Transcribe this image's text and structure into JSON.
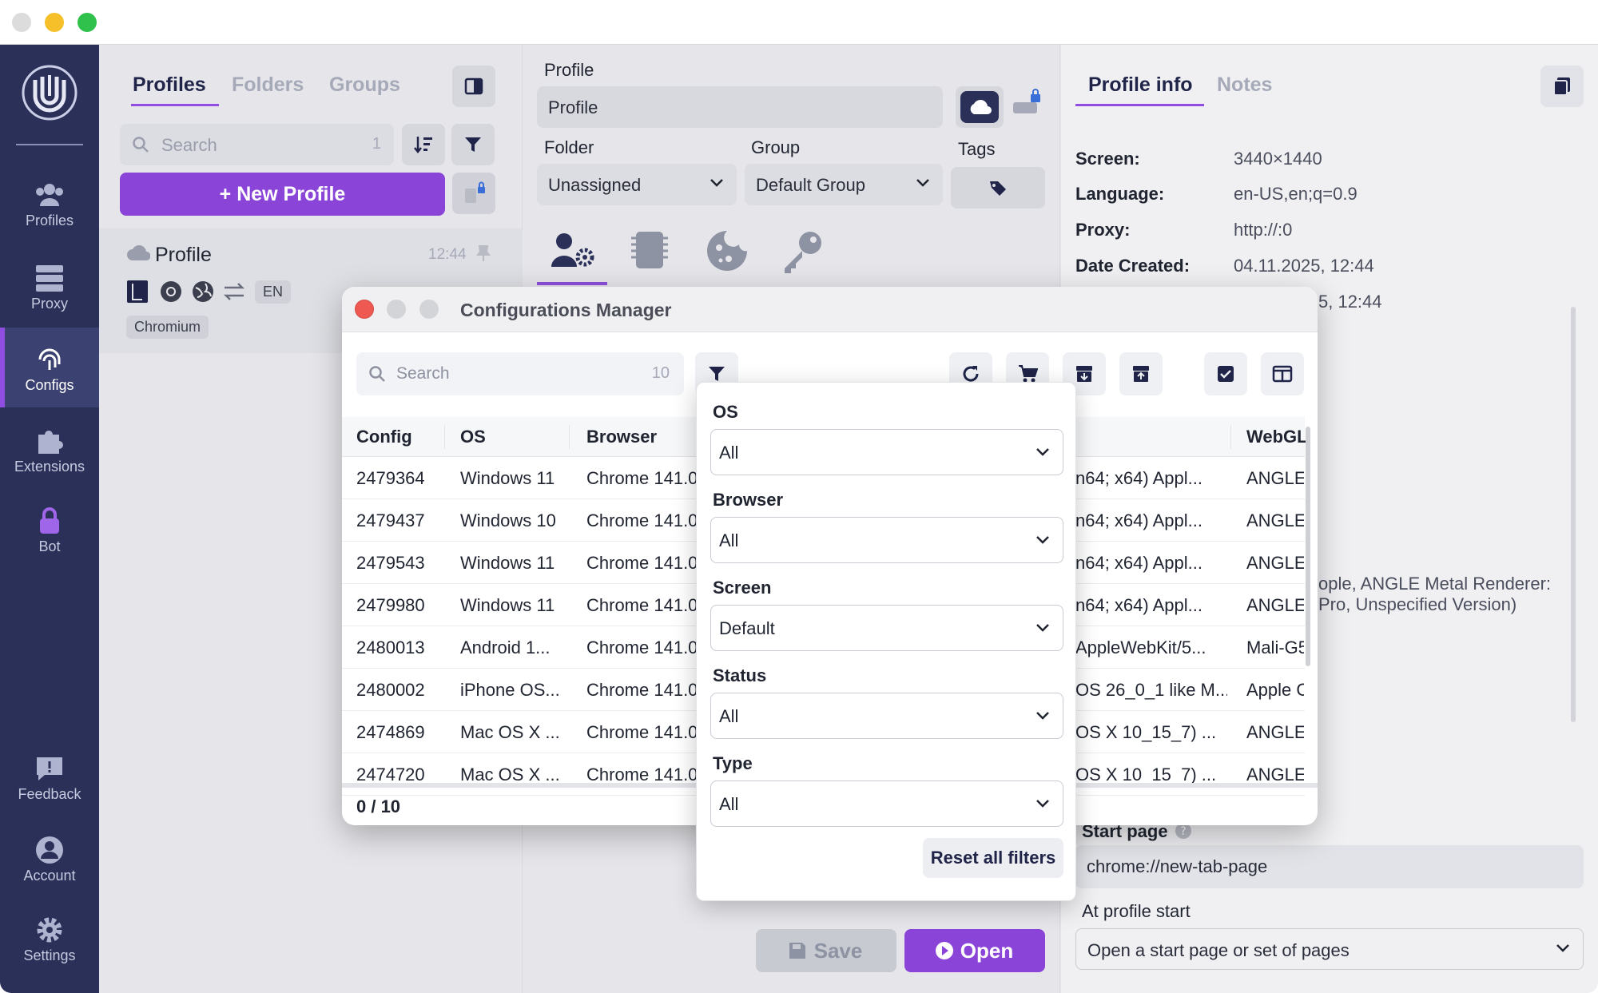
{
  "sidebar": {
    "items": [
      {
        "label": "Profiles",
        "icon": "users-icon"
      },
      {
        "label": "Proxy",
        "icon": "server-icon"
      },
      {
        "label": "Configs",
        "icon": "fingerprint-icon",
        "active": true
      },
      {
        "label": "Extensions",
        "icon": "puzzle-icon"
      },
      {
        "label": "Bot",
        "icon": "lock-icon"
      },
      {
        "label": "Feedback",
        "icon": "feedback-icon"
      },
      {
        "label": "Account",
        "icon": "account-icon"
      },
      {
        "label": "Settings",
        "icon": "gear-icon"
      }
    ]
  },
  "profiles_panel": {
    "tabs": [
      "Profiles",
      "Folders",
      "Groups"
    ],
    "search_placeholder": "Search",
    "search_count": "1",
    "new_profile_label": "New Profile",
    "profile": {
      "name": "Profile",
      "time": "12:44",
      "lang": "EN",
      "engine": "Chromium"
    }
  },
  "middle": {
    "profile_label": "Profile",
    "profile_value": "Profile",
    "folder_label": "Folder",
    "folder_value": "Unassigned",
    "group_label": "Group",
    "group_value": "Default Group",
    "tags_label": "Tags",
    "save_label": "Save",
    "open_label": "Open"
  },
  "right": {
    "tabs": [
      "Profile info",
      "Notes"
    ],
    "info": [
      {
        "key": "Screen:",
        "value": "3440×1440"
      },
      {
        "key": "Language:",
        "value": "en-US,en;q=0.9"
      },
      {
        "key": "Proxy:",
        "value": "http://:0"
      },
      {
        "key": "Date Created:",
        "value": "04.11.2025, 12:44"
      }
    ],
    "partial_date": "5, 12:44",
    "partial_webgl_1": "ople, ANGLE Metal Renderer:",
    "partial_webgl_2": "Pro, Unspecified Version)",
    "start_page_label": "Start page",
    "start_page_value": "chrome://new-tab-page",
    "at_start_label": "At profile start",
    "at_start_value": "Open a start page or set of pages"
  },
  "modal": {
    "title": "Configurations Manager",
    "search_placeholder": "Search",
    "search_count": "10",
    "columns": [
      "Config",
      "OS",
      "Browser",
      "WebGL"
    ],
    "rows": [
      {
        "config": "2479364",
        "os": "Windows 11",
        "browser": "Chrome 141.0",
        "ua": "n64; x64) Appl...",
        "webgl": "ANGLE"
      },
      {
        "config": "2479437",
        "os": "Windows 10",
        "browser": "Chrome 141.0",
        "ua": "n64; x64) Appl...",
        "webgl": "ANGLE"
      },
      {
        "config": "2479543",
        "os": "Windows 11",
        "browser": "Chrome 141.0",
        "ua": "n64; x64) Appl...",
        "webgl": "ANGLE"
      },
      {
        "config": "2479980",
        "os": "Windows 11",
        "browser": "Chrome 141.0",
        "ua": "n64; x64) Appl...",
        "webgl": "ANGLE"
      },
      {
        "config": "2480013",
        "os": "Android 1...",
        "browser": "Chrome 141.0",
        "ua": "AppleWebKit/5...",
        "webgl": "Mali-G5"
      },
      {
        "config": "2480002",
        "os": "iPhone OS...",
        "browser": "Chrome 141.0",
        "ua": "OS 26_0_1 like M...",
        "webgl": "Apple C"
      },
      {
        "config": "2474869",
        "os": "Mac OS X ...",
        "browser": "Chrome 141.0",
        "ua": "OS X 10_15_7) ...",
        "webgl": "ANGLE"
      },
      {
        "config": "2474720",
        "os": "Mac OS X ...",
        "browser": "Chrome 141.0",
        "ua": "OS X 10_15_7) ...",
        "webgl": "ANGLE"
      }
    ],
    "footer": "0 / 10"
  },
  "filter": {
    "fields": [
      {
        "label": "OS",
        "value": "All"
      },
      {
        "label": "Browser",
        "value": "All"
      },
      {
        "label": "Screen",
        "value": "Default"
      },
      {
        "label": "Status",
        "value": "All"
      },
      {
        "label": "Type",
        "value": "All"
      }
    ],
    "reset_label": "Reset all filters"
  },
  "colors": {
    "accent": "#8a45d8",
    "rail": "#2a3058",
    "navy": "#1f2448"
  }
}
